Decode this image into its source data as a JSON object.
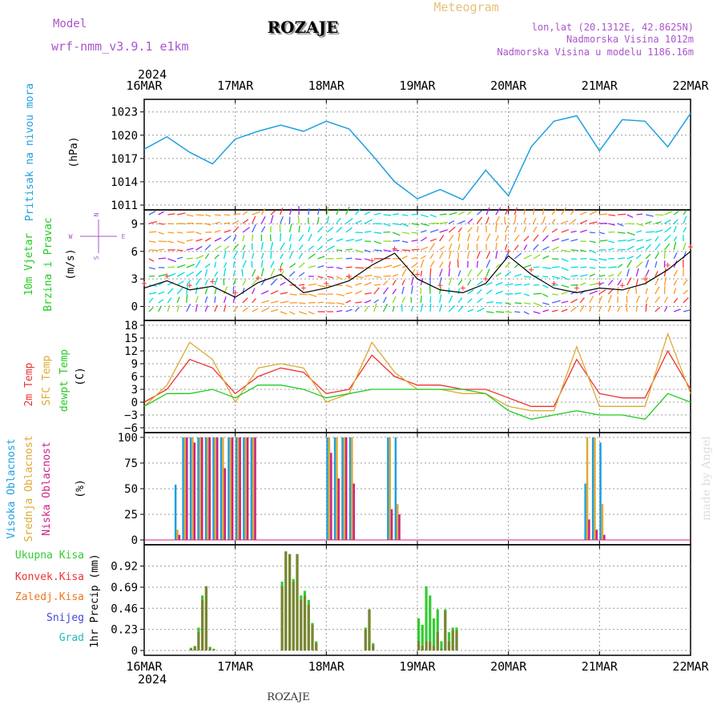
{
  "header": {
    "model_label": "Model",
    "model_name": "wrf-nmm_v3.9.1 e1km",
    "station": "ROZAJE",
    "meteogram": "Meteogram",
    "lonlat": "lon,lat (20.1312E, 42.8625N)",
    "elevation": "Nadmorska Visina 1012m",
    "model_elevation": "Nadmorska Visina u modelu 1186.16m",
    "footer_station": "ROZAJE",
    "watermark": "made by Angel"
  },
  "colors": {
    "pressure": "#1ea0e0",
    "wind_label": "#22cc22",
    "t2m": "#ee3333",
    "tsfc": "#ddaa33",
    "dewpt": "#22cc22",
    "cloud_high": "#1ea0e0",
    "cloud_mid": "#ddaa33",
    "cloud_low": "#cc2288",
    "precip_total": "#33cc33",
    "precip_conv": "#ee3333",
    "precip_frozen": "#ee7722",
    "snow": "#4444dd",
    "hail": "#22bbbb",
    "compass": "#aa55cc"
  },
  "time_axis": {
    "year": "2024",
    "ticks": [
      "16MAR",
      "17MAR",
      "18MAR",
      "19MAR",
      "20MAR",
      "21MAR",
      "22MAR"
    ]
  },
  "labels": {
    "pressure_title": "Pritisak na nivou mora",
    "pressure_unit": "(hPa)",
    "wind_title1": "10m Vjetar",
    "wind_title2": "Brzina i Pravac",
    "wind_unit": "(m/s)",
    "compass_n": "N",
    "compass_s": "S",
    "compass_w": "W",
    "compass_e": "E",
    "temp_t2m": "2m Temp",
    "temp_sfc": "SFC Temp",
    "temp_dew": "dewpt Temp",
    "temp_unit": "(C)",
    "cloud_high": "Visoka Oblacnost",
    "cloud_mid": "Srednja Oblacnost",
    "cloud_low": "Niska Oblacnost",
    "cloud_unit": "(%)",
    "precip_total": "Ukupna Kisa",
    "precip_conv": "Konvek.Kisa",
    "precip_frozen": "Zaledj.Kisa",
    "precip_snow": "Snijeg",
    "precip_hail": "Grad",
    "precip_unit": "1hr Precip (mm)"
  },
  "chart_data": [
    {
      "type": "line",
      "name": "pressure",
      "ylim": [
        1011,
        1024
      ],
      "yticks": [
        "1011",
        "1014",
        "1017",
        "1020",
        "1023"
      ],
      "x_hours": [
        0,
        6,
        12,
        18,
        24,
        30,
        36,
        42,
        48,
        54,
        60,
        66,
        72,
        78,
        84,
        90,
        96,
        102,
        108,
        114,
        120,
        126,
        132,
        138,
        144
      ],
      "values": [
        1018.2,
        1019.8,
        1017.8,
        1016.3,
        1019.5,
        1020.5,
        1021.3,
        1020.5,
        1021.8,
        1020.8,
        1017.5,
        1014.0,
        1011.8,
        1013.0,
        1011.7,
        1015.5,
        1012.2,
        1018.5,
        1021.8,
        1022.5,
        1018.0,
        1022.0,
        1021.8,
        1018.5,
        1022.8
      ]
    },
    {
      "type": "line",
      "name": "wind",
      "ylim": [
        -1,
        10
      ],
      "yticks": [
        "0",
        "3",
        "6",
        "9"
      ],
      "x_hours": [
        0,
        6,
        12,
        18,
        24,
        30,
        36,
        42,
        48,
        54,
        60,
        66,
        72,
        78,
        84,
        90,
        96,
        102,
        108,
        114,
        120,
        126,
        132,
        138,
        144
      ],
      "values": [
        2.0,
        2.8,
        1.8,
        2.2,
        1.0,
        2.6,
        3.5,
        1.5,
        2.0,
        2.8,
        4.5,
        5.8,
        3.0,
        1.8,
        1.5,
        2.5,
        5.5,
        3.5,
        2.0,
        1.5,
        2.0,
        1.8,
        2.5,
        4.0,
        6.0
      ]
    },
    {
      "type": "line",
      "name": "temperature",
      "ylim": [
        -6,
        18
      ],
      "yticks": [
        "−6",
        "−3",
        "0",
        "3",
        "6",
        "9",
        "12",
        "15",
        "18"
      ],
      "x_hours": [
        0,
        6,
        12,
        18,
        24,
        30,
        36,
        42,
        48,
        54,
        60,
        66,
        72,
        78,
        84,
        90,
        96,
        102,
        108,
        114,
        120,
        126,
        132,
        138,
        144
      ],
      "series": [
        {
          "name": "2m Temp",
          "values": [
            0,
            3,
            10,
            8,
            2,
            6,
            8,
            7,
            2,
            3,
            11,
            6,
            4,
            4,
            3,
            3,
            1,
            -1,
            -1,
            10,
            2,
            1,
            1,
            12,
            3
          ]
        },
        {
          "name": "SFC Temp",
          "values": [
            -1,
            4,
            14,
            10,
            0,
            8,
            9,
            8,
            0,
            2,
            14,
            7,
            3,
            3,
            2,
            2,
            -1,
            -2,
            -2,
            13,
            -1,
            -1,
            -1,
            16,
            2
          ]
        },
        {
          "name": "dewpt Temp",
          "values": [
            -1,
            2,
            2,
            3,
            1,
            4,
            4,
            3,
            1,
            2,
            3,
            3,
            3,
            3,
            3,
            2,
            -2,
            -4,
            -3,
            -2,
            -3,
            -3,
            -4,
            2,
            0
          ]
        }
      ]
    },
    {
      "type": "bar",
      "name": "clouds",
      "ylim": [
        0,
        100
      ],
      "yticks": [
        "0",
        "25",
        "50",
        "75",
        "100"
      ],
      "series": [
        {
          "name": "Visoka Oblacnost",
          "values": [
            54,
            100,
            100,
            100,
            100,
            100,
            100,
            100,
            100,
            100,
            100,
            100,
            100,
            100,
            100,
            100,
            100,
            55,
            100,
            95
          ]
        },
        {
          "name": "Srednja Oblacnost",
          "values": [
            10,
            100,
            100,
            100,
            100,
            100,
            100,
            100,
            100,
            100,
            100,
            100,
            100,
            100,
            100,
            100,
            35,
            100,
            100,
            35
          ]
        },
        {
          "name": "Niska Oblacnost",
          "values": [
            5,
            100,
            95,
            100,
            100,
            100,
            70,
            100,
            100,
            100,
            100,
            85,
            60,
            100,
            55,
            30,
            25,
            20,
            10,
            5
          ]
        }
      ]
    },
    {
      "type": "bar",
      "name": "precip",
      "ylim": [
        0,
        1.1
      ],
      "yticks": [
        "0",
        "0.23",
        "0.46",
        "0.69",
        "0.92"
      ],
      "x_hours": [
        12,
        13,
        14,
        15,
        16,
        17,
        18,
        36,
        37,
        38,
        39,
        40,
        41,
        42,
        43,
        44,
        45,
        58,
        59,
        60,
        72,
        73,
        74,
        75,
        76,
        77,
        78,
        79,
        80,
        81,
        82
      ],
      "values": [
        0.03,
        0.05,
        0.25,
        0.6,
        0.7,
        0.04,
        0.02,
        0.75,
        1.08,
        1.05,
        0.78,
        1.05,
        0.6,
        0.65,
        0.55,
        0.3,
        0.1,
        0.25,
        0.45,
        0.08,
        0.35,
        0.28,
        0.7,
        0.6,
        0.35,
        0.45,
        0.1,
        0.45,
        0.2,
        0.25,
        0.25
      ],
      "convective": [
        0.02,
        0.04,
        0.2,
        0.55,
        0.7,
        0.03,
        0.01,
        0.7,
        1.08,
        1.05,
        0.75,
        1.05,
        0.55,
        0.6,
        0.5,
        0.28,
        0.08,
        0.23,
        0.45,
        0.06,
        0.1,
        0.05,
        0.1,
        0.1,
        0.05,
        0.2,
        0.02,
        0.43,
        0.1,
        0.22,
        0.22
      ]
    }
  ]
}
